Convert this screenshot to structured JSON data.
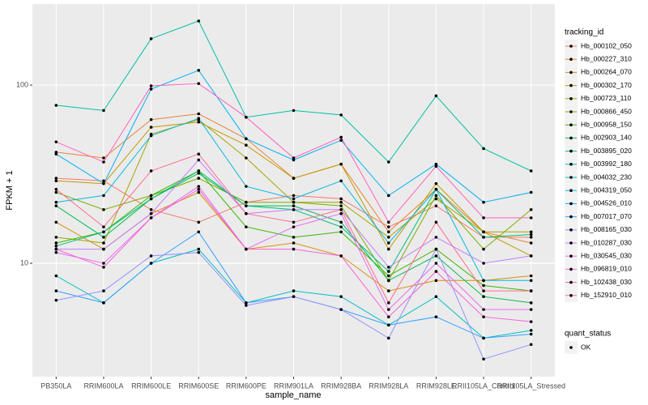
{
  "chart_data": {
    "type": "line",
    "x_label": "sample_name",
    "y_label": "FPKM + 1",
    "log_scale": true,
    "grid": true,
    "ylim": [
      2.31,
      285
    ],
    "yticks": [
      10,
      100
    ],
    "legend_title": "tracking_id",
    "shape_legend_title": "quant_status",
    "shape_legend_entries": [
      "OK"
    ],
    "categories": [
      "PB350LA",
      "RRIM600LA",
      "RRIM600LE",
      "RRIM600SE",
      "RRIM600PE",
      "RRIM901LA",
      "RRIM928BA",
      "RRIM928LA",
      "RRIM928LE",
      "RRII105LA_Control",
      "RRII105LA_Stressed"
    ],
    "series": [
      {
        "name": "Hb_000102_050",
        "color": "#F8766D",
        "values": [
          30,
          29,
          20,
          17,
          22,
          24,
          23,
          16,
          21,
          14,
          14
        ]
      },
      {
        "name": "Hb_000227_310",
        "color": "#EA8331",
        "values": [
          42,
          39,
          64,
          69,
          50,
          30,
          36,
          15,
          26,
          15,
          13
        ]
      },
      {
        "name": "Hb_000264_070",
        "color": "#D89000",
        "values": [
          17,
          12,
          19,
          25,
          12,
          13,
          11,
          7,
          8,
          8,
          8.5
        ]
      },
      {
        "name": "Hb_000302_170",
        "color": "#C09B00",
        "values": [
          29,
          28,
          58,
          62,
          46,
          30,
          36,
          12,
          28,
          15,
          11
        ]
      },
      {
        "name": "Hb_000723_110",
        "color": "#A3A500",
        "values": [
          14,
          13,
          53,
          64,
          39,
          22,
          22,
          14,
          23,
          15,
          15
        ]
      },
      {
        "name": "Hb_000866_450",
        "color": "#7CAE00",
        "values": [
          25,
          20,
          24,
          30,
          22,
          22,
          21,
          8,
          24,
          12,
          20
        ]
      },
      {
        "name": "Hb_000958_150",
        "color": "#39B600",
        "values": [
          13,
          15,
          24,
          33,
          16,
          14,
          15,
          8.5,
          12,
          7.5,
          7
        ]
      },
      {
        "name": "Hb_002903_140",
        "color": "#00BB4E",
        "values": [
          21,
          14,
          23,
          32,
          21,
          21,
          17,
          8,
          11,
          6.5,
          6
        ]
      },
      {
        "name": "Hb_003895_020",
        "color": "#00BF7D",
        "values": [
          12.5,
          15,
          23,
          33,
          21,
          20,
          16,
          9,
          26,
          14,
          14.5
        ]
      },
      {
        "name": "Hb_003992_180",
        "color": "#00C1A3",
        "values": [
          77,
          72,
          182,
          229,
          66,
          72,
          68,
          37,
          87,
          44,
          33
        ]
      },
      {
        "name": "Hb_004032_230",
        "color": "#00BFC4",
        "values": [
          8.5,
          6,
          10,
          12,
          6,
          7,
          6.5,
          4.5,
          6.5,
          3.8,
          4.2
        ]
      },
      {
        "name": "Hb_004319_050",
        "color": "#00BAE0",
        "values": [
          22,
          24,
          52,
          65,
          27,
          23,
          29,
          13,
          26,
          8,
          8
        ]
      },
      {
        "name": "Hb_004526_010",
        "color": "#00B0F6",
        "values": [
          41,
          28,
          95,
          121,
          50,
          38,
          49,
          24,
          36,
          22,
          25
        ]
      },
      {
        "name": "Hb_007017_070",
        "color": "#35A2FF",
        "values": [
          7,
          6,
          10,
          15,
          6,
          6.5,
          5.5,
          4.5,
          5,
          3.8,
          4
        ]
      },
      {
        "name": "Hb_008165_030",
        "color": "#9590FF",
        "values": [
          6.2,
          7,
          11,
          11.5,
          5.8,
          6.5,
          5.5,
          3.8,
          12,
          2.9,
          3.5
        ]
      },
      {
        "name": "Hb_010287_030",
        "color": "#C77CFF",
        "values": [
          12,
          12,
          19,
          38,
          19,
          20,
          20,
          9.5,
          14,
          10,
          11
        ]
      },
      {
        "name": "Hb_030545_030",
        "color": "#E76BF3",
        "values": [
          11.5,
          10,
          18,
          27,
          12,
          16,
          19,
          5.5,
          10,
          5.5,
          5.5
        ]
      },
      {
        "name": "Hb_096819_010",
        "color": "#FA62DB",
        "values": [
          12,
          9.5,
          18,
          26,
          12,
          12,
          11,
          5,
          9,
          5,
          4.7
        ]
      },
      {
        "name": "Hb_102438_030",
        "color": "#FF62BC",
        "values": [
          48,
          37,
          99,
          102,
          66,
          39,
          51,
          17,
          35,
          18,
          18
        ]
      },
      {
        "name": "Hb_152910_010",
        "color": "#FF6C91",
        "values": [
          26,
          16,
          33,
          41,
          19,
          17,
          20,
          6,
          17,
          7,
          7
        ]
      }
    ]
  }
}
